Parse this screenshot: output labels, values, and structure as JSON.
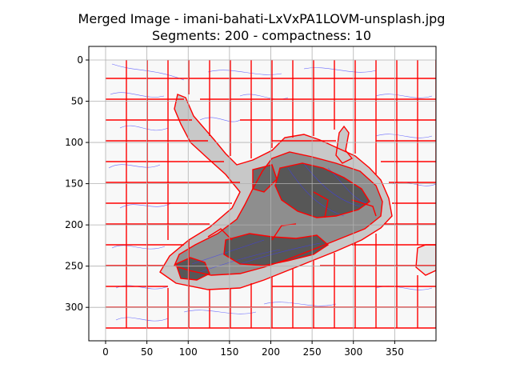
{
  "chart_data": {
    "type": "image",
    "title": "Merged Image - imani-bahati-LxVxPA1LOVM-unsplash.jpg",
    "subtitle": "Segments: 200 - compactness: 10",
    "x_ticks": [
      0,
      50,
      100,
      150,
      200,
      250,
      300,
      350
    ],
    "y_ticks": [
      0,
      50,
      100,
      150,
      200,
      250,
      300
    ],
    "xlim": [
      -20,
      400
    ],
    "ylim": [
      340,
      -20
    ],
    "image_extent": {
      "x": [
        0,
        400
      ],
      "y": [
        0,
        326
      ]
    },
    "grid": true,
    "segments": 200,
    "compactness": 10,
    "colors": {
      "boundary": "#ff0000",
      "contour": "#3b3bff",
      "background": "#f8f8f8",
      "object_light": "#c8c8c8",
      "object_mid": "#8e8e8e",
      "object_dark": "#575757",
      "grid": "#b0b0b0"
    }
  }
}
